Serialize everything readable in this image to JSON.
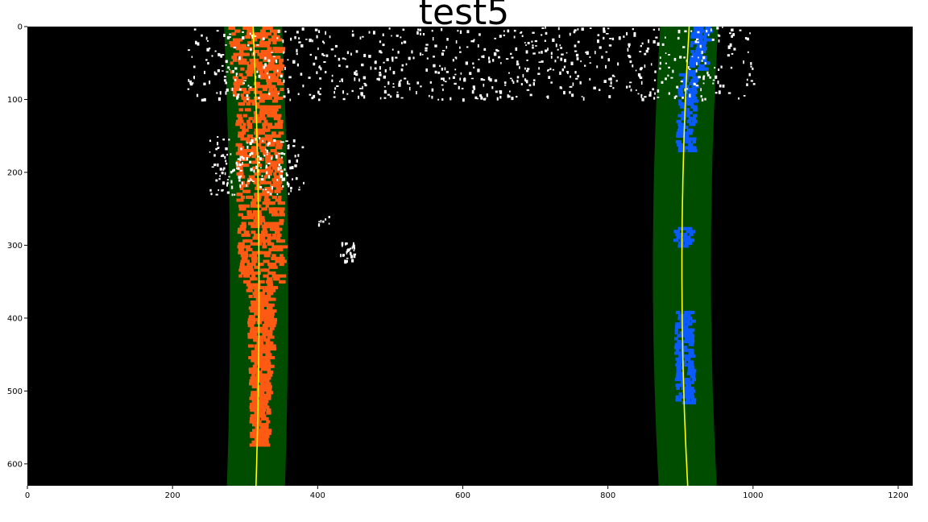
{
  "title": "test5",
  "image": {
    "description_colors": {
      "background": "#000000",
      "lane_window": "#004d00",
      "left_lane_pixels": "#ff5a14",
      "right_lane_pixels": "#0a5aff",
      "fit_line": "#ffff00",
      "edge_pixels": "#ffffff"
    }
  },
  "axes": {
    "x_range": [
      0,
      1220
    ],
    "y_range": [
      0,
      630
    ],
    "x_ticks": [
      "0",
      "200",
      "400",
      "600",
      "800",
      "1000",
      "1200"
    ],
    "y_ticks": [
      "0",
      "100",
      "200",
      "300",
      "400",
      "500",
      "600"
    ]
  },
  "lanes": {
    "left_fit": {
      "top_x": 311,
      "mid_x": 325,
      "bottom_x": 315
    },
    "right_fit": {
      "top_x": 912,
      "mid_x": 893,
      "bottom_x": 910
    },
    "window_half_width": 40
  }
}
